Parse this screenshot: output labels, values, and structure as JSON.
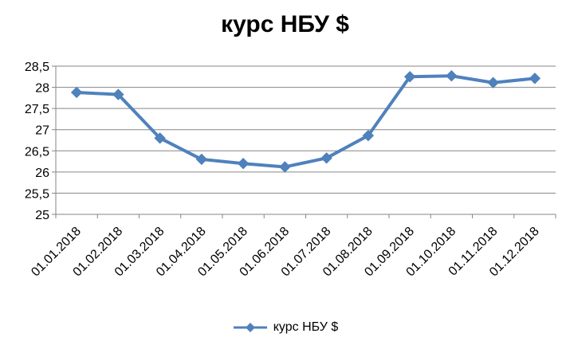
{
  "chart_data": {
    "type": "line",
    "title": "курс НБУ $",
    "categories": [
      "01.01.2018",
      "01.02.2018",
      "01.03.2018",
      "01.04.2018",
      "01.05.2018",
      "01.06.2018",
      "01.07.2018",
      "01.08.2018",
      "01.09.2018",
      "01.10.2018",
      "01.11.2018",
      "01.12.2018"
    ],
    "series": [
      {
        "name": "курс НБУ $",
        "values": [
          27.88,
          27.83,
          26.8,
          26.3,
          26.2,
          26.12,
          26.33,
          26.86,
          28.25,
          28.27,
          28.11,
          28.21
        ],
        "color": "#4f81bd"
      }
    ],
    "ylim": [
      25,
      28.5
    ],
    "yticks": [
      "25",
      "25,5",
      "26",
      "26,5",
      "27",
      "27,5",
      "28",
      "28,5"
    ],
    "grid": true,
    "legend": "bottom"
  }
}
